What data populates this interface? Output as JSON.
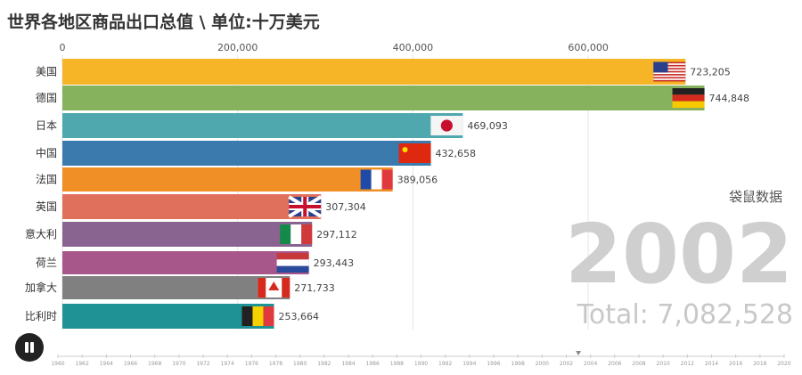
{
  "title": "世界各地区商品出口总值 \\ 单位:十万美元",
  "watermark": "袋鼠数据",
  "year": "2002",
  "total": "Total: 7,082,528",
  "chart_data": {
    "type": "bar",
    "orientation": "horizontal",
    "title": "世界各地区商品出口总值 \\ 单位:十万美元",
    "x_ticks": [
      "0",
      "200,000",
      "400,000",
      "600,000"
    ],
    "xlim": [
      0,
      740000
    ],
    "grid": true,
    "categories": [
      "美国",
      "德国",
      "日本",
      "中国",
      "法国",
      "英国",
      "意大利",
      "荷兰",
      "加拿大",
      "比利时"
    ],
    "values": [
      723205,
      744848,
      469093,
      432658,
      389056,
      307304,
      297112,
      293443,
      271733,
      253664
    ],
    "value_labels": [
      "723,205",
      "744,848",
      "469,093",
      "432,658",
      "389,056",
      "307,304",
      "297,112",
      "293,443",
      "271,733",
      "253,664"
    ],
    "colors": [
      "#f6b526",
      "#86b25e",
      "#4fa8ae",
      "#3a7aad",
      "#ef8f25",
      "#e0705c",
      "#8a6490",
      "#a8578a",
      "#808080",
      "#1f9296"
    ],
    "flags": [
      "us-flag",
      "germany-flag",
      "japan-flag",
      "china-flag",
      "france-flag",
      "uk-flag",
      "italy-flag",
      "netherlands-flag",
      "canada-flag",
      "belgium-flag"
    ]
  },
  "timeline": {
    "years": [
      "1960",
      "1962",
      "1964",
      "1966",
      "1968",
      "1970",
      "1972",
      "1974",
      "1976",
      "1978",
      "1980",
      "1982",
      "1984",
      "1986",
      "1988",
      "1990",
      "1992",
      "1994",
      "1996",
      "1998",
      "2000",
      "2002",
      "2004",
      "2006",
      "2008",
      "2010",
      "2012",
      "2014",
      "2016",
      "2018",
      "2020"
    ],
    "current": 2003
  },
  "controls": {
    "play_state": "playing",
    "icon": "pause-icon"
  }
}
